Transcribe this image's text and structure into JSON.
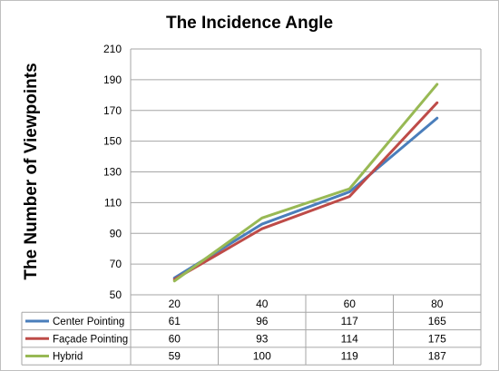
{
  "chart_data": {
    "type": "line",
    "title": "The Incidence Angle",
    "ylabel": "The Number of Viewpoints",
    "categories": [
      "20",
      "40",
      "60",
      "80"
    ],
    "y_ticks": [
      "210",
      "190",
      "170",
      "150",
      "130",
      "110",
      "90",
      "70",
      "50"
    ],
    "ylim": [
      50,
      210
    ],
    "grid": true,
    "legend": "data-table",
    "series": [
      {
        "name": "Center Pointing",
        "color": "#4a7ebb",
        "values": [
          61,
          96,
          117,
          165
        ]
      },
      {
        "name": "Façade Pointing",
        "color": "#be4b48",
        "values": [
          60,
          93,
          114,
          175
        ]
      },
      {
        "name": "Hybrid",
        "color": "#98b954",
        "values": [
          59,
          100,
          119,
          187
        ]
      }
    ]
  }
}
